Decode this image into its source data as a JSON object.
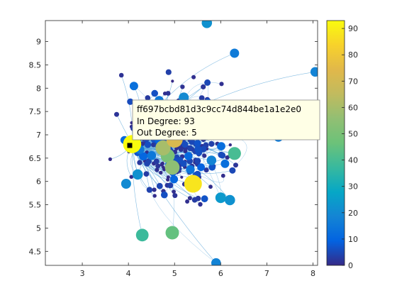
{
  "chart_data": {
    "type": "scatter",
    "subtype": "network-graph",
    "title": "",
    "xlabel": "",
    "ylabel": "",
    "xlim": [
      2.2,
      8.1
    ],
    "ylim": [
      4.2,
      9.45
    ],
    "xticks": [
      3,
      4,
      5,
      6,
      7,
      8
    ],
    "yticks": [
      4.5,
      5,
      5.5,
      6,
      6.5,
      7,
      7.5,
      8,
      8.5,
      9
    ],
    "grid": false,
    "colorbar": {
      "colormap": "parula",
      "min": 0,
      "max": 93,
      "ticks": [
        0,
        10,
        20,
        30,
        40,
        50,
        60,
        70,
        80,
        90
      ]
    },
    "hub": {
      "x": 4.08,
      "y": 6.8
    },
    "highlighted_nodes": [
      {
        "x": 4.08,
        "y": 6.8,
        "in_degree": 93
      },
      {
        "x": 5.4,
        "y": 5.95,
        "in_degree": 88
      },
      {
        "x": 5.0,
        "y": 6.9,
        "in_degree": 72
      },
      {
        "x": 4.75,
        "y": 6.72,
        "in_degree": 60
      },
      {
        "x": 4.95,
        "y": 6.3,
        "in_degree": 55
      },
      {
        "x": 4.95,
        "y": 4.9,
        "in_degree": 45
      },
      {
        "x": 6.3,
        "y": 6.6,
        "in_degree": 40
      },
      {
        "x": 4.3,
        "y": 4.85,
        "in_degree": 38
      },
      {
        "x": 5.7,
        "y": 9.4,
        "in_degree": 22
      },
      {
        "x": 8.05,
        "y": 8.35,
        "in_degree": 18
      },
      {
        "x": 5.9,
        "y": 4.25,
        "in_degree": 18
      },
      {
        "x": 3.95,
        "y": 5.95,
        "in_degree": 20
      },
      {
        "x": 5.2,
        "y": 7.8,
        "in_degree": 20
      },
      {
        "x": 6.2,
        "y": 5.6,
        "in_degree": 22
      },
      {
        "x": 6.0,
        "y": 5.65,
        "in_degree": 24
      },
      {
        "x": 4.2,
        "y": 6.15,
        "in_degree": 22
      },
      {
        "x": 5.8,
        "y": 6.45,
        "in_degree": 18
      },
      {
        "x": 7.25,
        "y": 6.95,
        "in_degree": 16
      },
      {
        "x": 6.3,
        "y": 8.75,
        "in_degree": 16
      },
      {
        "x": 5.9,
        "y": 7.1,
        "in_degree": 34
      },
      {
        "x": 4.85,
        "y": 6.55,
        "in_degree": 50
      }
    ]
  },
  "tooltip": {
    "line1": "ff697bcbd81d3c9cc74d844be1a1e2e0",
    "line2": "In Degree: 93",
    "line3": "Out Degree: 5"
  }
}
